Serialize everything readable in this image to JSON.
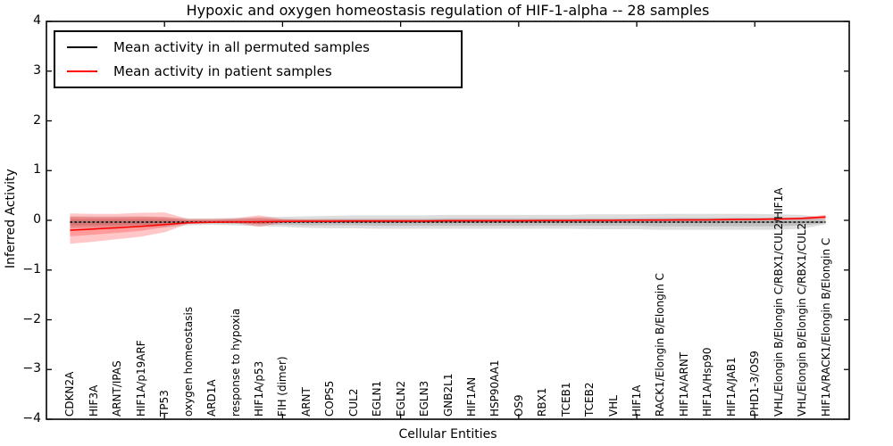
{
  "title": "Hypoxic and oxygen homeostasis regulation of HIF-1-alpha -- 28 samples",
  "legend": {
    "items": [
      {
        "label": "Mean activity in all permuted samples",
        "series": "permuted"
      },
      {
        "label": "Mean activity in patient samples",
        "series": "patient"
      }
    ]
  },
  "chart_data": {
    "type": "line",
    "title": "Hypoxic and oxygen homeostasis regulation of HIF-1-alpha -- 28 samples",
    "xlabel": "Cellular Entities",
    "ylabel": "Inferred Activity",
    "ylim": [
      -4,
      4
    ],
    "grid": false,
    "legend_position": "upper left",
    "y_ticks": {
      "values": [
        4,
        3,
        2,
        1,
        0,
        -1,
        -2,
        -3,
        -4
      ],
      "labels": [
        "4",
        "3",
        "2",
        "1",
        "0",
        "−1",
        "−2",
        "−3",
        "−4"
      ]
    },
    "x_major_ticks": [
      5,
      10,
      15,
      20,
      25,
      30
    ],
    "entities": [
      "CDKN2A",
      "HIF3A",
      "ARNT/IPAS",
      "HIF1A/p19ARF",
      "TP53",
      "oxygen homeostasis",
      "ARD1A",
      "response to hypoxia",
      "HIF1A/p53",
      "FIH (dimer)",
      "ARNT",
      "COPS5",
      "CUL2",
      "EGLN1",
      "EGLN2",
      "EGLN3",
      "GNB2L1",
      "HIF1AN",
      "HSP90AA1",
      "OS9",
      "RBX1",
      "TCEB1",
      "TCEB2",
      "VHL",
      "HIF1A",
      "RACK1/Elongin B/Elongin C",
      "HIF1A/ARNT",
      "HIF1A/Hsp90",
      "HIF1A/JAB1",
      "PHD1-3/OS9",
      "VHL/Elongin B/Elongin C/RBX1/CUL2/HIF1A",
      "VHL/Elongin B/Elongin C/RBX1/CUL2",
      "HIF1A/RACK1/Elongin B/Elongin C"
    ],
    "series": {
      "permuted": {
        "name": "Mean activity in all permuted samples",
        "mean": -0.035,
        "outer_low": [
          -0.15,
          -0.15,
          -0.15,
          -0.14,
          -0.14,
          -0.1,
          -0.09,
          -0.1,
          -0.12,
          -0.13,
          -0.15,
          -0.16,
          -0.16,
          -0.17,
          -0.17,
          -0.17,
          -0.17,
          -0.17,
          -0.17,
          -0.17,
          -0.17,
          -0.17,
          -0.18,
          -0.18,
          -0.18,
          -0.19,
          -0.19,
          -0.19,
          -0.19,
          -0.19,
          -0.19,
          -0.17,
          -0.08
        ],
        "outer_high": [
          0.08,
          0.08,
          0.08,
          0.08,
          0.07,
          0.04,
          0.04,
          0.05,
          0.06,
          0.07,
          0.08,
          0.09,
          0.1,
          0.1,
          0.1,
          0.1,
          0.11,
          0.11,
          0.11,
          0.11,
          0.11,
          0.11,
          0.12,
          0.12,
          0.12,
          0.13,
          0.13,
          0.13,
          0.13,
          0.13,
          0.12,
          0.11,
          0.05
        ],
        "inner_low": [
          -0.1,
          -0.1,
          -0.1,
          -0.09,
          -0.09,
          -0.07,
          -0.06,
          -0.07,
          -0.08,
          -0.09,
          -0.1,
          -0.1,
          -0.1,
          -0.11,
          -0.11,
          -0.11,
          -0.11,
          -0.11,
          -0.11,
          -0.11,
          -0.11,
          -0.11,
          -0.11,
          -0.11,
          -0.11,
          -0.12,
          -0.12,
          -0.12,
          -0.12,
          -0.12,
          -0.12,
          -0.1,
          -0.06
        ],
        "inner_high": [
          0.02,
          0.02,
          0.02,
          0.02,
          0.02,
          0.0,
          0.0,
          0.01,
          0.01,
          0.02,
          0.02,
          0.03,
          0.03,
          0.03,
          0.03,
          0.03,
          0.04,
          0.04,
          0.04,
          0.04,
          0.04,
          0.04,
          0.04,
          0.04,
          0.04,
          0.05,
          0.05,
          0.05,
          0.05,
          0.05,
          0.05,
          0.04,
          0.01
        ]
      },
      "patient": {
        "name": "Mean activity in patient samples",
        "mean": [
          -0.2,
          -0.175,
          -0.15,
          -0.12,
          -0.085,
          -0.05,
          -0.04,
          -0.035,
          -0.03,
          -0.025,
          -0.02,
          -0.02,
          -0.015,
          -0.015,
          -0.015,
          -0.015,
          -0.01,
          -0.01,
          -0.01,
          -0.01,
          -0.005,
          -0.005,
          0.0,
          0.0,
          0.005,
          0.005,
          0.01,
          0.01,
          0.015,
          0.02,
          0.03,
          0.04,
          0.07
        ],
        "outer_low": [
          -0.47,
          -0.43,
          -0.38,
          -0.33,
          -0.24,
          -0.07,
          -0.05,
          -0.05,
          -0.13,
          -0.05,
          -0.04,
          -0.04,
          -0.04,
          -0.04,
          -0.04,
          -0.04,
          -0.04,
          -0.04,
          -0.04,
          -0.04,
          -0.03,
          -0.03,
          -0.03,
          -0.03,
          -0.02,
          -0.02,
          -0.02,
          -0.02,
          -0.01,
          -0.01,
          0.0,
          0.01,
          0.02
        ],
        "outer_high": [
          0.14,
          0.13,
          0.13,
          0.15,
          0.16,
          0.03,
          0.03,
          0.04,
          0.1,
          0.03,
          0.02,
          0.02,
          0.02,
          0.02,
          0.02,
          0.02,
          0.02,
          0.02,
          0.02,
          0.02,
          0.02,
          0.02,
          0.02,
          0.02,
          0.03,
          0.03,
          0.03,
          0.03,
          0.04,
          0.04,
          0.05,
          0.06,
          0.11
        ],
        "inner_low": [
          -0.32,
          -0.29,
          -0.25,
          -0.21,
          -0.14,
          -0.05,
          -0.04,
          -0.04,
          -0.07,
          -0.035,
          -0.03,
          -0.03,
          -0.03,
          -0.03,
          -0.03,
          -0.03,
          -0.025,
          -0.025,
          -0.025,
          -0.025,
          -0.02,
          -0.02,
          -0.015,
          -0.015,
          -0.01,
          -0.01,
          -0.005,
          -0.005,
          0.0,
          0.0,
          0.01,
          0.02,
          0.04
        ],
        "inner_high": [
          0.07,
          0.06,
          0.06,
          0.07,
          0.06,
          0.01,
          0.01,
          0.02,
          0.05,
          0.01,
          0.005,
          0.005,
          0.005,
          0.005,
          0.005,
          0.005,
          0.01,
          0.01,
          0.01,
          0.01,
          0.01,
          0.01,
          0.01,
          0.01,
          0.015,
          0.015,
          0.02,
          0.02,
          0.025,
          0.03,
          0.04,
          0.05,
          0.09
        ]
      }
    },
    "colors": {
      "permuted": "#000000",
      "patient": "#ff0000",
      "permuted_band": "rgba(0,0,0,0.13)",
      "patient_band": "rgba(255,0,0,0.22)"
    }
  }
}
